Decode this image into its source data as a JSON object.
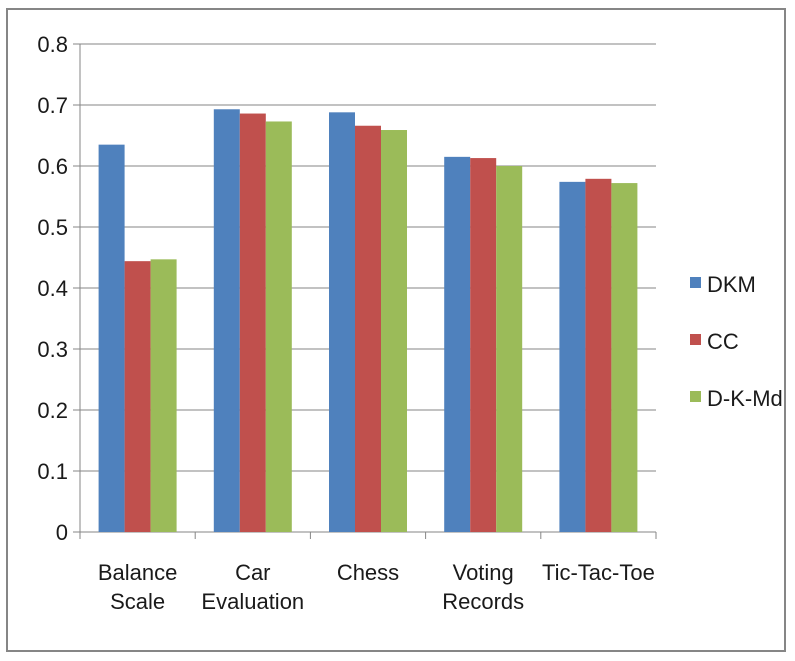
{
  "chart_data": {
    "type": "bar",
    "title": "",
    "xlabel": "",
    "ylabel": "",
    "categories": [
      [
        "Balance",
        "Scale"
      ],
      [
        "Car",
        "Evaluation"
      ],
      [
        "Chess"
      ],
      [
        "Voting",
        "Records"
      ],
      [
        "Tic-Tac-Toe"
      ]
    ],
    "series": [
      {
        "name": "DKM",
        "color": "#4f81bd",
        "values": [
          0.635,
          0.693,
          0.688,
          0.615,
          0.574
        ]
      },
      {
        "name": "CC",
        "color": "#c0504d",
        "values": [
          0.444,
          0.686,
          0.666,
          0.613,
          0.579
        ]
      },
      {
        "name": "D-K-Md",
        "color": "#9bbb59",
        "values": [
          0.447,
          0.673,
          0.659,
          0.6,
          0.572
        ]
      }
    ],
    "ylim": [
      0,
      0.8
    ],
    "yticks": [
      "0",
      "0.1",
      "0.2",
      "0.3",
      "0.4",
      "0.5",
      "0.6",
      "0.7",
      "0.8"
    ],
    "grid": true,
    "legend": "right"
  }
}
